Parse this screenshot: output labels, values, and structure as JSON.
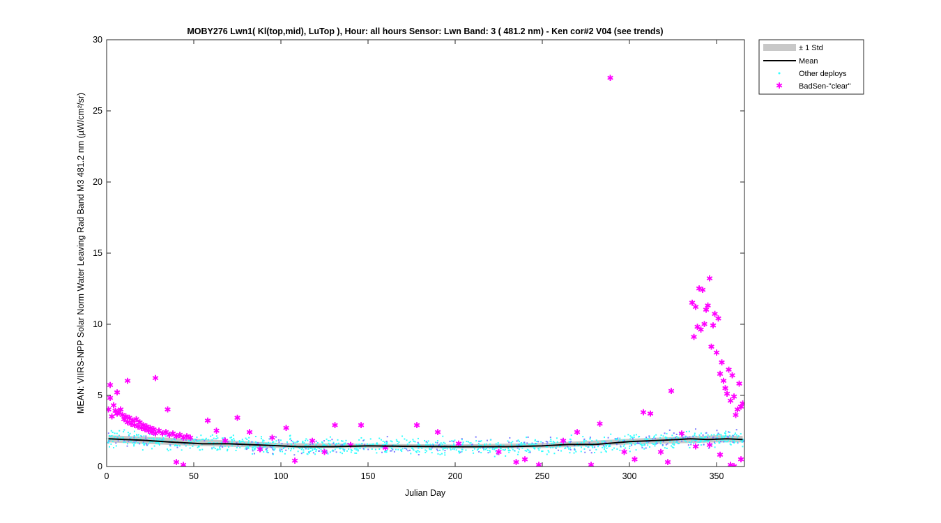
{
  "chart_data": {
    "type": "scatter",
    "title": "MOBY276   Lwn1( Kl(top,mid), LuTop ),   Hour: all hours  Sensor: Lwn Band: 3 ( 481.2 nm)  - Ken cor#2 V04 (see trends)",
    "xlabel": "Julian Day",
    "ylabel": "MEAN: VIIRS-NPP Solar Norm Water Leaving Rad Band M3 481.2 nm (µW/cm²/sr)",
    "xlim": [
      0,
      366
    ],
    "ylim": [
      0,
      30
    ],
    "x_ticks": [
      0,
      50,
      100,
      150,
      200,
      250,
      300,
      350
    ],
    "y_ticks": [
      0,
      5,
      10,
      15,
      20,
      25,
      30
    ],
    "grid": false,
    "legend_position": "outside top-right",
    "legend": [
      {
        "name": "± 1 Std",
        "symbol": "band",
        "color": "#c8c8c8"
      },
      {
        "name": "Mean",
        "symbol": "line",
        "color": "#000000"
      },
      {
        "name": "Other deploys",
        "symbol": "dot",
        "color": "#33ffff"
      },
      {
        "name": "BadSen-\"clear\"",
        "symbol": "star",
        "color": "#ff00ff"
      }
    ],
    "mean": {
      "x": [
        1,
        20,
        40,
        55,
        70,
        90,
        100,
        110,
        130,
        150,
        170,
        200,
        230,
        250,
        265,
        280,
        290,
        300,
        320,
        335,
        345,
        356,
        365
      ],
      "y": [
        1.95,
        1.85,
        1.7,
        1.6,
        1.6,
        1.5,
        1.45,
        1.4,
        1.4,
        1.45,
        1.42,
        1.4,
        1.4,
        1.45,
        1.55,
        1.55,
        1.65,
        1.75,
        1.85,
        1.95,
        1.9,
        1.95,
        1.9
      ]
    },
    "std_band": {
      "x": [
        1,
        50,
        100,
        150,
        200,
        250,
        300,
        350,
        365
      ],
      "lower": [
        1.7,
        1.45,
        1.3,
        1.3,
        1.27,
        1.3,
        1.55,
        1.7,
        1.7
      ],
      "upper": [
        2.2,
        1.95,
        1.65,
        1.6,
        1.55,
        1.65,
        1.95,
        2.2,
        2.15
      ]
    },
    "other_deploys_note": "dense cyan scatter around the mean, approx. 1.0 to 2.6",
    "badsen_clear": {
      "x": [
        1,
        2,
        3,
        4,
        5,
        6,
        7,
        8,
        9,
        10,
        11,
        12,
        13,
        14,
        15,
        16,
        17,
        18,
        19,
        20,
        21,
        22,
        23,
        24,
        25,
        26,
        27,
        28,
        30,
        32,
        34,
        36,
        38,
        40,
        42,
        44,
        46,
        48,
        2,
        6,
        12,
        28,
        35,
        40,
        44,
        58,
        63,
        68,
        75,
        82,
        88,
        95,
        103,
        108,
        118,
        125,
        131,
        140,
        146,
        160,
        178,
        190,
        202,
        225,
        235,
        240,
        248,
        262,
        270,
        278,
        283,
        289,
        297,
        303,
        308,
        312,
        318,
        322,
        324,
        330,
        336,
        337,
        338,
        339,
        340,
        341,
        342,
        343,
        344,
        345,
        346,
        347,
        348,
        349,
        350,
        351,
        352,
        353,
        354,
        355,
        356,
        357,
        358,
        359,
        360,
        361,
        362,
        363,
        364,
        365,
        338,
        346,
        352,
        358,
        360,
        364
      ],
      "y": [
        4.0,
        5.7,
        3.5,
        4.3,
        3.9,
        3.7,
        3.8,
        4.0,
        3.6,
        3.3,
        3.5,
        3.1,
        3.4,
        3.0,
        3.2,
        2.9,
        3.3,
        2.8,
        3.1,
        2.7,
        2.9,
        2.6,
        2.8,
        2.5,
        2.7,
        2.4,
        2.6,
        2.3,
        2.5,
        2.3,
        2.4,
        2.2,
        2.3,
        2.1,
        2.2,
        2.0,
        2.1,
        2.0,
        4.8,
        5.2,
        6.0,
        6.2,
        4.0,
        0.3,
        0.1,
        3.2,
        2.5,
        1.8,
        3.4,
        2.4,
        1.2,
        2.0,
        2.7,
        0.4,
        1.8,
        1.0,
        2.9,
        1.5,
        2.9,
        1.3,
        2.9,
        2.4,
        1.6,
        1.0,
        0.3,
        0.5,
        0.1,
        1.8,
        2.4,
        0.1,
        3.0,
        27.3,
        1.0,
        0.5,
        3.8,
        3.7,
        1.0,
        0.3,
        5.3,
        2.3,
        11.5,
        9.1,
        11.2,
        9.8,
        12.5,
        9.6,
        12.4,
        10.0,
        11.0,
        11.3,
        13.2,
        8.4,
        9.9,
        10.7,
        8.0,
        10.4,
        6.5,
        7.3,
        6.0,
        5.5,
        5.1,
        6.8,
        4.6,
        6.4,
        4.9,
        3.6,
        4.0,
        5.8,
        4.2,
        4.4,
        1.4,
        1.5,
        0.8,
        0.1,
        0.0,
        0.5
      ]
    }
  }
}
